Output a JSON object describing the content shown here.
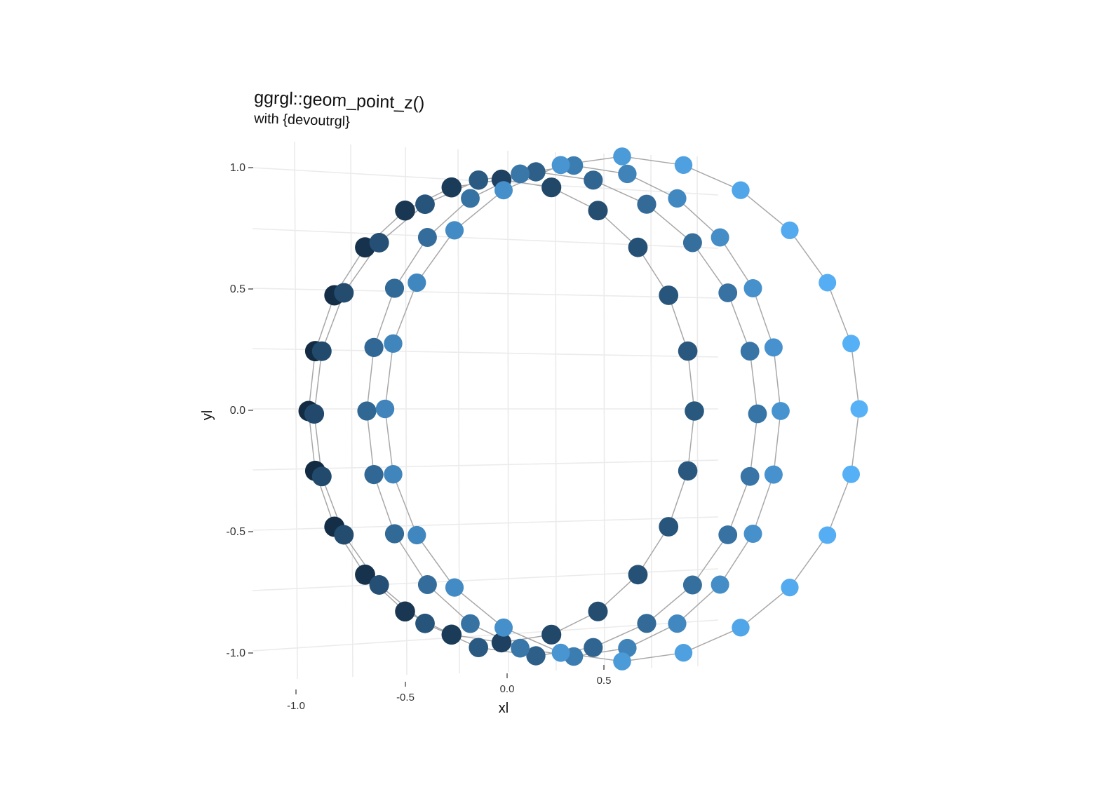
{
  "chart_data": {
    "type": "scatter",
    "title": "ggrgl::geom_point_z()",
    "subtitle": "with {devoutrgl}",
    "xlabel": "xl",
    "ylabel": "yl",
    "x_ticks": [
      "-1.0",
      "-0.5",
      "0.0",
      "0.5"
    ],
    "y_ticks": [
      "1.0",
      "0.5",
      "0.0",
      "-0.5",
      "-1.0"
    ],
    "x_tick_values": [
      -1.0,
      -0.5,
      0.0,
      0.5
    ],
    "y_tick_values": [
      1.0,
      0.5,
      0.0,
      -0.5,
      -1.0
    ],
    "grid": true,
    "legend": "none",
    "projection": "3d-perspective",
    "color_scale": [
      "#132b43",
      "#56b1f7"
    ],
    "series": [
      {
        "z": 0.0,
        "points_per_ring": 24,
        "radius": 1.0
      },
      {
        "z": 0.333,
        "points_per_ring": 24,
        "radius": 1.0
      },
      {
        "z": 0.667,
        "points_per_ring": 24,
        "radius": 1.0
      },
      {
        "z": 1.0,
        "points_per_ring": 24,
        "radius": 1.0
      }
    ]
  }
}
